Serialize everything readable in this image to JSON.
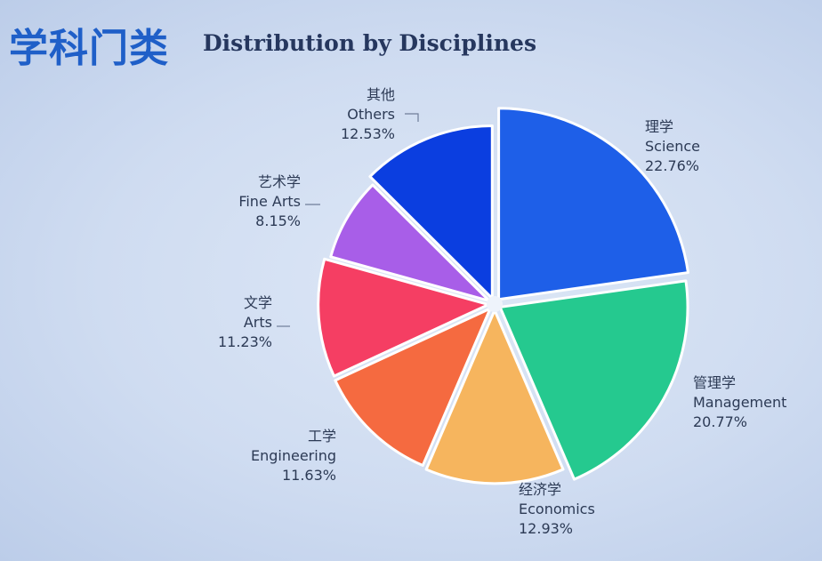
{
  "header": {
    "title_cn": "学科门类",
    "title_en": "Distribution by Disciplines"
  },
  "chart_data": {
    "type": "pie",
    "title": "Distribution by Disciplines",
    "slices": [
      {
        "name_cn": "理学",
        "name_en": "Science",
        "value": 22.76,
        "label": "22.76%",
        "color": "#1e5fe8"
      },
      {
        "name_cn": "管理学",
        "name_en": "Management",
        "value": 20.77,
        "label": "20.77%",
        "color": "#25c98f"
      },
      {
        "name_cn": "经济学",
        "name_en": "Economics",
        "value": 12.93,
        "label": "12.93%",
        "color": "#f6b55e"
      },
      {
        "name_cn": "工学",
        "name_en": "Engineering",
        "value": 11.63,
        "label": "11.63%",
        "color": "#f56a40"
      },
      {
        "name_cn": "文学",
        "name_en": "Arts",
        "value": 11.23,
        "label": "11.23%",
        "color": "#f53e63"
      },
      {
        "name_cn": "艺术学",
        "name_en": "Fine Arts",
        "value": 8.15,
        "label": "8.15%",
        "color": "#a85ee8"
      },
      {
        "name_cn": "其他",
        "name_en": "Others",
        "value": 12.53,
        "label": "12.53%",
        "color": "#0b3ee0"
      }
    ]
  }
}
